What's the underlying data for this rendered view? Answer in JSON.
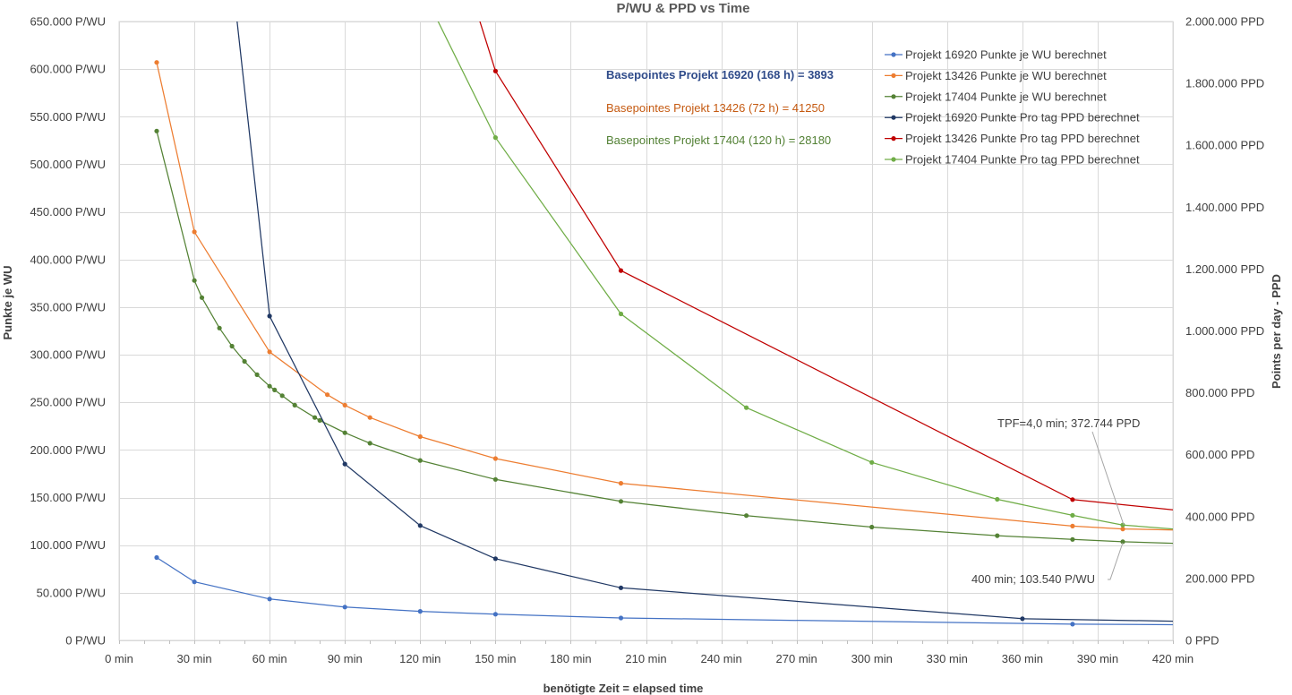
{
  "chart_data": {
    "type": "line",
    "title": "P/WU & PPD vs Time",
    "xlabel": "benötigte Zeit = elapsed time",
    "ylabel_left": "Punkte je WU",
    "ylabel_right": "Points per day - PPD",
    "xlim": [
      0,
      420
    ],
    "ylim_left": [
      0,
      650000
    ],
    "ylim_right": [
      0,
      2000000
    ],
    "grid": true,
    "legend_position": "top-right",
    "x_ticks": [
      0,
      30,
      60,
      90,
      120,
      150,
      180,
      210,
      240,
      270,
      300,
      330,
      360,
      390,
      420
    ],
    "x_tick_labels": [
      "0 min",
      "30 min",
      "60 min",
      "90 min",
      "120 min",
      "150 min",
      "180 min",
      "210 min",
      "240 min",
      "270 min",
      "300 min",
      "330 min",
      "360 min",
      "390 min",
      "420 min"
    ],
    "left_ticks": [
      0,
      50000,
      100000,
      150000,
      200000,
      250000,
      300000,
      350000,
      400000,
      450000,
      500000,
      550000,
      600000,
      650000
    ],
    "left_tick_labels": [
      "0 P/WU",
      "50.000 P/WU",
      "100.000 P/WU",
      "150.000 P/WU",
      "200.000 P/WU",
      "250.000 P/WU",
      "300.000 P/WU",
      "350.000 P/WU",
      "400.000 P/WU",
      "450.000 P/WU",
      "500.000 P/WU",
      "550.000 P/WU",
      "600.000 P/WU",
      "650.000 P/WU"
    ],
    "right_ticks": [
      0,
      200000,
      400000,
      600000,
      800000,
      1000000,
      1200000,
      1400000,
      1600000,
      1800000,
      2000000
    ],
    "right_tick_labels": [
      "0 PPD",
      "200.000 PPD",
      "400.000 PPD",
      "600.000 PPD",
      "800.000 PPD",
      "1.000.000 PPD",
      "1.200.000 PPD",
      "1.400.000 PPD",
      "1.600.000 PPD",
      "1.800.000 PPD",
      "2.000.000 PPD"
    ],
    "series": [
      {
        "name": "Projekt 16920 Punkte je WU berechnet",
        "axis": "left",
        "color": "#4472C4",
        "points": [
          [
            15,
            87000
          ],
          [
            30,
            61500
          ],
          [
            60,
            43500
          ],
          [
            90,
            35000
          ],
          [
            120,
            30500
          ],
          [
            150,
            27500
          ],
          [
            200,
            23500
          ],
          [
            380,
            17000
          ],
          [
            420,
            16500
          ]
        ]
      },
      {
        "name": "Projekt 13426 Punkte je WU berechnet",
        "axis": "left",
        "color": "#ED7D31",
        "points": [
          [
            15,
            607000
          ],
          [
            30,
            429000
          ],
          [
            60,
            303000
          ],
          [
            83,
            258000
          ],
          [
            90,
            247000
          ],
          [
            100,
            234000
          ],
          [
            120,
            214000
          ],
          [
            150,
            191000
          ],
          [
            200,
            165000
          ],
          [
            380,
            120000
          ],
          [
            400,
            117000
          ],
          [
            420,
            116000
          ]
        ]
      },
      {
        "name": "Projekt 17404 Punkte je WU berechnet",
        "axis": "left",
        "color": "#548235",
        "points": [
          [
            15,
            535000
          ],
          [
            30,
            378000
          ],
          [
            33,
            360000
          ],
          [
            40,
            328000
          ],
          [
            45,
            309000
          ],
          [
            50,
            293000
          ],
          [
            55,
            279000
          ],
          [
            60,
            267000
          ],
          [
            62,
            263000
          ],
          [
            65,
            257000
          ],
          [
            70,
            247000
          ],
          [
            78,
            234000
          ],
          [
            80,
            231000
          ],
          [
            90,
            218000
          ],
          [
            100,
            207000
          ],
          [
            120,
            189000
          ],
          [
            150,
            169000
          ],
          [
            200,
            146000
          ],
          [
            250,
            131000
          ],
          [
            300,
            119000
          ],
          [
            350,
            110000
          ],
          [
            380,
            106000
          ],
          [
            400,
            103540
          ],
          [
            420,
            102000
          ]
        ]
      },
      {
        "name": "Projekt 16920 Punkte Pro tag PPD berechnet",
        "axis": "right",
        "color": "#203864",
        "points": [
          [
            45,
            2150000
          ],
          [
            60,
            1048000
          ],
          [
            90,
            570000
          ],
          [
            120,
            371000
          ],
          [
            150,
            264000
          ],
          [
            200,
            170000
          ],
          [
            360,
            70000
          ],
          [
            420,
            62000
          ]
        ]
      },
      {
        "name": "Projekt 13426 Punkte Pro tag PPD berechnet",
        "axis": "right",
        "color": "#C00000",
        "points": [
          [
            138,
            2150000
          ],
          [
            150,
            1840000
          ],
          [
            200,
            1195000
          ],
          [
            380,
            455000
          ],
          [
            420,
            422000
          ]
        ]
      },
      {
        "name": "Projekt 17404 Punkte Pro tag PPD berechnet",
        "axis": "right",
        "color": "#70AD47",
        "points": [
          [
            118,
            2150000
          ],
          [
            150,
            1625000
          ],
          [
            200,
            1055000
          ],
          [
            250,
            752000
          ],
          [
            300,
            575000
          ],
          [
            350,
            456000
          ],
          [
            380,
            404000
          ],
          [
            400,
            372744
          ],
          [
            420,
            360000
          ]
        ]
      }
    ],
    "annotations": [
      {
        "text": "Basepointes Projekt 16920 (168 h) = 3893",
        "color": "#2F4B8A",
        "bold": true
      },
      {
        "text": "Basepointes Projekt 13426 (72 h) = 41250",
        "color": "#C55A11",
        "bold": false
      },
      {
        "text": "Basepointes Projekt 17404 (120 h) = 28180",
        "color": "#538135",
        "bold": false
      },
      {
        "text": "TPF=4,0 min; 372.744 PPD",
        "color": "#404040",
        "bold": false
      },
      {
        "text": "400 min; 103.540 P/WU",
        "color": "#404040",
        "bold": false
      }
    ]
  }
}
